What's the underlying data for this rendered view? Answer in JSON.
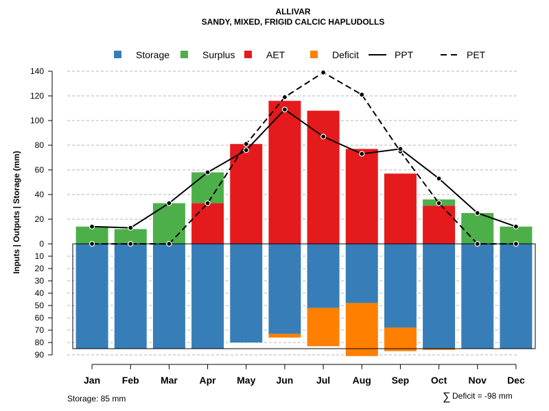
{
  "chart_data": {
    "type": "bar",
    "title": "ALLIVAR",
    "subtitle": "SANDY, MIXED, FRIGID CALCIC HAPLUDOLLS",
    "ylabel": "Inputs | Outputs | Storage    (mm)",
    "categories": [
      "Jan",
      "Feb",
      "Mar",
      "Apr",
      "May",
      "Jun",
      "Jul",
      "Aug",
      "Sep",
      "Oct",
      "Nov",
      "Dec"
    ],
    "upper_ylim": [
      0,
      140
    ],
    "upper_ticks": [
      "0",
      "20",
      "40",
      "60",
      "80",
      "100",
      "120",
      "140"
    ],
    "lower_ylim": [
      0,
      90
    ],
    "lower_ticks": [
      "10",
      "20",
      "30",
      "40",
      "50",
      "60",
      "70",
      "80",
      "90"
    ],
    "legend": [
      {
        "name": "Storage",
        "color": "#377EB8",
        "kind": "box"
      },
      {
        "name": "Surplus",
        "color": "#4DAF4A",
        "kind": "box"
      },
      {
        "name": "AET",
        "color": "#E41A1C",
        "kind": "box"
      },
      {
        "name": "Deficit",
        "color": "#FF7F00",
        "kind": "box"
      },
      {
        "name": "PPT",
        "color": "#000000",
        "kind": "line"
      },
      {
        "name": "PET",
        "color": "#000000",
        "kind": "dash"
      }
    ],
    "series": [
      {
        "name": "AET",
        "values": [
          0,
          0,
          0,
          33,
          81,
          116,
          108,
          77,
          57,
          31,
          0,
          0
        ]
      },
      {
        "name": "Surplus",
        "values": [
          14,
          12,
          33,
          25,
          0,
          0,
          0,
          0,
          0,
          5,
          25,
          14
        ]
      },
      {
        "name": "Storage",
        "values": [
          85,
          85,
          85,
          85,
          80,
          73,
          52,
          48,
          68,
          85,
          85,
          85
        ]
      },
      {
        "name": "Deficit",
        "values": [
          0,
          0,
          0,
          0,
          0,
          3,
          31,
          43,
          19,
          1,
          0,
          0
        ]
      },
      {
        "name": "PPT",
        "values": [
          14,
          13,
          33,
          58,
          76,
          109,
          87,
          73,
          77,
          53,
          25,
          14
        ]
      },
      {
        "name": "PET",
        "values": [
          0,
          0,
          0,
          33,
          81,
          119,
          139,
          121,
          75,
          33,
          0,
          0
        ]
      }
    ],
    "storage_capacity": 85,
    "grid": true
  },
  "footer": {
    "storage_note": "Storage: 85 mm",
    "deficit_symbol": "∑",
    "deficit_note": "Deficit = -98 mm"
  }
}
